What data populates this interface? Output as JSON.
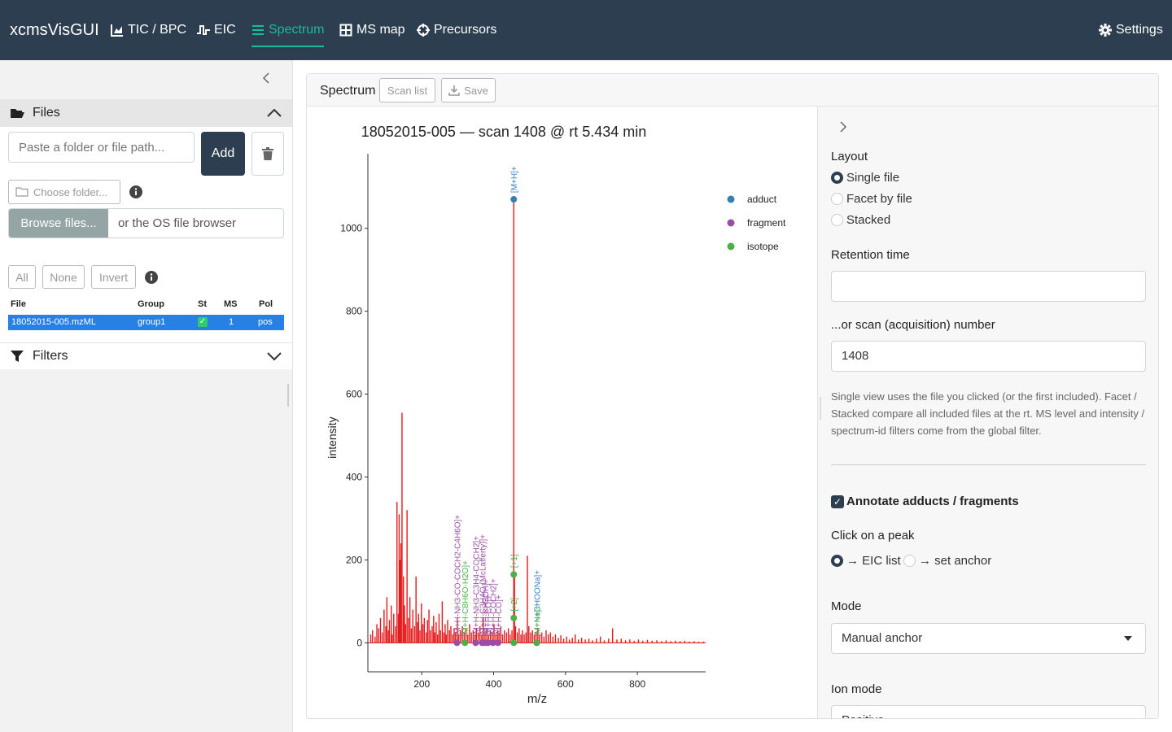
{
  "navbar": {
    "brand": "xcmsVisGUI",
    "items": [
      {
        "label": "TIC / BPC",
        "icon": "chart-area-icon"
      },
      {
        "label": "EIC",
        "icon": "waveform-icon"
      },
      {
        "label": "Spectrum",
        "icon": "bars-icon",
        "active": true
      },
      {
        "label": "MS map",
        "icon": "grid-icon"
      },
      {
        "label": "Precursors",
        "icon": "crosshair-icon"
      }
    ],
    "settings_label": "Settings"
  },
  "sidebar": {
    "files_title": "Files",
    "path_placeholder": "Paste a folder or file path...",
    "add_label": "Add",
    "choose_folder_label": "Choose folder...",
    "browse_label": "Browse files...",
    "browse_hint": "or the OS file browser",
    "select_all": "All",
    "select_none": "None",
    "select_invert": "Invert",
    "table": {
      "headers": [
        "File",
        "Group",
        "St",
        "MS",
        "Pol"
      ],
      "rows": [
        {
          "file": "18052015-005.mzML",
          "group": "group1",
          "st": "✓",
          "ms": "1",
          "pol": "pos"
        }
      ]
    },
    "filters_title": "Filters"
  },
  "card": {
    "title": "Spectrum",
    "scan_list_label": "Scan list",
    "save_label": "Save"
  },
  "right_panel": {
    "layout_label": "Layout",
    "layout_options": [
      "Single file",
      "Facet by file",
      "Stacked"
    ],
    "layout_selected": "Single file",
    "rt_label": "Retention time",
    "rt_value": "",
    "scan_label": "...or scan (acquisition) number",
    "scan_value": "1408",
    "help_text": "Single view uses the file you clicked (or the first included). Facet / Stacked compare all included files at the rt. MS level and intensity / spectrum-id filters come from the global filter.",
    "annotate_label": "Annotate adducts / fragments",
    "annotate_checked": true,
    "click_label": "Click on a peak",
    "click_options": [
      "→ EIC list",
      "→ set anchor"
    ],
    "click_selected": "→ EIC list",
    "mode_label": "Mode",
    "mode_value": "Manual anchor",
    "ion_mode_label": "Ion mode",
    "ion_mode_value": "Positive"
  },
  "chart_data": {
    "type": "bar",
    "title": "18052015-005 — scan 1408 @ rt 5.434 min",
    "xlabel": "m/z",
    "ylabel": "intensity",
    "xlim": [
      50,
      990
    ],
    "ylim": [
      -70,
      1180
    ],
    "xticks": [
      200,
      400,
      600,
      800
    ],
    "yticks": [
      0,
      200,
      400,
      600,
      800,
      1000
    ],
    "line_color": "#e41a1c",
    "legend_position": "top-right",
    "legend": [
      {
        "name": "adduct",
        "color": "#377eb8"
      },
      {
        "name": "fragment",
        "color": "#984ea3"
      },
      {
        "name": "isotope",
        "color": "#4daf4a"
      }
    ],
    "peaks": [
      {
        "x": 58,
        "y": 20
      },
      {
        "x": 63,
        "y": 30
      },
      {
        "x": 70,
        "y": 15
      },
      {
        "x": 75,
        "y": 45
      },
      {
        "x": 80,
        "y": 35
      },
      {
        "x": 85,
        "y": 60
      },
      {
        "x": 90,
        "y": 25
      },
      {
        "x": 95,
        "y": 80
      },
      {
        "x": 100,
        "y": 40
      },
      {
        "x": 103,
        "y": 110
      },
      {
        "x": 107,
        "y": 30
      },
      {
        "x": 110,
        "y": 55
      },
      {
        "x": 115,
        "y": 90
      },
      {
        "x": 118,
        "y": 20
      },
      {
        "x": 122,
        "y": 70
      },
      {
        "x": 127,
        "y": 40
      },
      {
        "x": 131,
        "y": 340
      },
      {
        "x": 135,
        "y": 70
      },
      {
        "x": 137,
        "y": 310
      },
      {
        "x": 139,
        "y": 200
      },
      {
        "x": 142,
        "y": 240
      },
      {
        "x": 145,
        "y": 555
      },
      {
        "x": 149,
        "y": 160
      },
      {
        "x": 152,
        "y": 90
      },
      {
        "x": 155,
        "y": 45
      },
      {
        "x": 159,
        "y": 320
      },
      {
        "x": 163,
        "y": 60
      },
      {
        "x": 167,
        "y": 110
      },
      {
        "x": 171,
        "y": 35
      },
      {
        "x": 175,
        "y": 80
      },
      {
        "x": 180,
        "y": 40
      },
      {
        "x": 184,
        "y": 160
      },
      {
        "x": 188,
        "y": 50
      },
      {
        "x": 191,
        "y": 70
      },
      {
        "x": 195,
        "y": 30
      },
      {
        "x": 199,
        "y": 95
      },
      {
        "x": 203,
        "y": 45
      },
      {
        "x": 207,
        "y": 60
      },
      {
        "x": 212,
        "y": 25
      },
      {
        "x": 216,
        "y": 55
      },
      {
        "x": 220,
        "y": 80
      },
      {
        "x": 224,
        "y": 30
      },
      {
        "x": 229,
        "y": 40
      },
      {
        "x": 233,
        "y": 65
      },
      {
        "x": 236,
        "y": 25
      },
      {
        "x": 240,
        "y": 50
      },
      {
        "x": 244,
        "y": 20
      },
      {
        "x": 248,
        "y": 70
      },
      {
        "x": 252,
        "y": 30
      },
      {
        "x": 257,
        "y": 100
      },
      {
        "x": 261,
        "y": 25
      },
      {
        "x": 265,
        "y": 45
      },
      {
        "x": 268,
        "y": 20
      },
      {
        "x": 272,
        "y": 55
      },
      {
        "x": 277,
        "y": 30
      },
      {
        "x": 281,
        "y": 40
      },
      {
        "x": 286,
        "y": 20
      },
      {
        "x": 290,
        "y": 35
      },
      {
        "x": 294,
        "y": 25
      },
      {
        "x": 299,
        "y": 60
      },
      {
        "x": 303,
        "y": 20
      },
      {
        "x": 308,
        "y": 30
      },
      {
        "x": 313,
        "y": 40
      },
      {
        "x": 318,
        "y": 25
      },
      {
        "x": 323,
        "y": 35
      },
      {
        "x": 328,
        "y": 20
      },
      {
        "x": 333,
        "y": 45
      },
      {
        "x": 338,
        "y": 25
      },
      {
        "x": 343,
        "y": 30
      },
      {
        "x": 348,
        "y": 20
      },
      {
        "x": 352,
        "y": 35
      },
      {
        "x": 357,
        "y": 25
      },
      {
        "x": 362,
        "y": 40
      },
      {
        "x": 367,
        "y": 20
      },
      {
        "x": 371,
        "y": 60
      },
      {
        "x": 376,
        "y": 25
      },
      {
        "x": 381,
        "y": 35
      },
      {
        "x": 386,
        "y": 20
      },
      {
        "x": 391,
        "y": 30
      },
      {
        "x": 396,
        "y": 25
      },
      {
        "x": 401,
        "y": 45
      },
      {
        "x": 406,
        "y": 20
      },
      {
        "x": 411,
        "y": 30
      },
      {
        "x": 415,
        "y": 25
      },
      {
        "x": 420,
        "y": 40
      },
      {
        "x": 425,
        "y": 20
      },
      {
        "x": 430,
        "y": 30
      },
      {
        "x": 436,
        "y": 25
      },
      {
        "x": 441,
        "y": 35
      },
      {
        "x": 446,
        "y": 20
      },
      {
        "x": 451,
        "y": 30
      },
      {
        "x": 456,
        "y": 1070
      },
      {
        "x": 458,
        "y": 160
      },
      {
        "x": 461,
        "y": 40
      },
      {
        "x": 466,
        "y": 25
      },
      {
        "x": 471,
        "y": 35
      },
      {
        "x": 476,
        "y": 20
      },
      {
        "x": 480,
        "y": 30
      },
      {
        "x": 485,
        "y": 20
      },
      {
        "x": 490,
        "y": 25
      },
      {
        "x": 494,
        "y": 210
      },
      {
        "x": 498,
        "y": 40
      },
      {
        "x": 503,
        "y": 25
      },
      {
        "x": 508,
        "y": 30
      },
      {
        "x": 513,
        "y": 20
      },
      {
        "x": 518,
        "y": 25
      },
      {
        "x": 523,
        "y": 35
      },
      {
        "x": 528,
        "y": 20
      },
      {
        "x": 534,
        "y": 25
      },
      {
        "x": 540,
        "y": 15
      },
      {
        "x": 546,
        "y": 30
      },
      {
        "x": 552,
        "y": 20
      },
      {
        "x": 558,
        "y": 25
      },
      {
        "x": 565,
        "y": 15
      },
      {
        "x": 572,
        "y": 20
      },
      {
        "x": 580,
        "y": 12
      },
      {
        "x": 587,
        "y": 18
      },
      {
        "x": 595,
        "y": 10
      },
      {
        "x": 603,
        "y": 15
      },
      {
        "x": 611,
        "y": 8
      },
      {
        "x": 619,
        "y": 12
      },
      {
        "x": 627,
        "y": 20
      },
      {
        "x": 636,
        "y": 8
      },
      {
        "x": 645,
        "y": 12
      },
      {
        "x": 655,
        "y": 8
      },
      {
        "x": 665,
        "y": 10
      },
      {
        "x": 675,
        "y": 6
      },
      {
        "x": 686,
        "y": 10
      },
      {
        "x": 697,
        "y": 15
      },
      {
        "x": 708,
        "y": 6
      },
      {
        "x": 720,
        "y": 10
      },
      {
        "x": 731,
        "y": 35
      },
      {
        "x": 743,
        "y": 8
      },
      {
        "x": 755,
        "y": 10
      },
      {
        "x": 767,
        "y": 6
      },
      {
        "x": 779,
        "y": 8
      },
      {
        "x": 791,
        "y": 5
      },
      {
        "x": 803,
        "y": 8
      },
      {
        "x": 815,
        "y": 5
      },
      {
        "x": 828,
        "y": 7
      },
      {
        "x": 841,
        "y": 5
      },
      {
        "x": 854,
        "y": 6
      },
      {
        "x": 867,
        "y": 4
      },
      {
        "x": 880,
        "y": 6
      },
      {
        "x": 893,
        "y": 4
      },
      {
        "x": 906,
        "y": 5
      },
      {
        "x": 919,
        "y": 4
      },
      {
        "x": 932,
        "y": 5
      },
      {
        "x": 945,
        "y": 3
      },
      {
        "x": 958,
        "y": 4
      },
      {
        "x": 971,
        "y": 3
      },
      {
        "x": 984,
        "y": 3
      }
    ],
    "annotations": [
      {
        "x": 456,
        "y": 1070,
        "kind": "adduct",
        "label": "[M+H]+"
      },
      {
        "x": 456,
        "y": 165,
        "kind": "isotope",
        "label": "[+1]"
      },
      {
        "x": 456,
        "y": 60,
        "kind": "isotope",
        "label": "[+2]"
      },
      {
        "x": 456,
        "y": 0,
        "kind": "isotope",
        "label": ""
      },
      {
        "x": 298,
        "y": 0,
        "kind": "fragment",
        "label": "[M+H-NH3-CO-COCH2-C4H6O]+"
      },
      {
        "x": 320,
        "y": 0,
        "kind": "isotope",
        "label": "[M+H-C8H6O-H2O]+"
      },
      {
        "x": 350,
        "y": 0,
        "kind": "fragment",
        "label": "[M+H-NH3-C3H4-COCH2]+"
      },
      {
        "x": 368,
        "y": 0,
        "kind": "fragment",
        "label": "[M+H-C3H4O (McLafferty)]+"
      },
      {
        "x": 376,
        "y": 0,
        "kind": "fragment",
        "label": "[M+H-CH3OH]+"
      },
      {
        "x": 384,
        "y": 0,
        "kind": "fragment",
        "label": "[M+H-CO]+"
      },
      {
        "x": 398,
        "y": 0,
        "kind": "fragment",
        "label": "[M+H-COCH2]+"
      },
      {
        "x": 412,
        "y": 0,
        "kind": "fragment",
        "label": "[M+H-CO]+"
      },
      {
        "x": 520,
        "y": 0,
        "kind": "adduct",
        "label": "[M+H+CHOONa]+"
      },
      {
        "x": 520,
        "y": 0,
        "kind": "isotope",
        "label": "[M+Na]+"
      }
    ]
  }
}
